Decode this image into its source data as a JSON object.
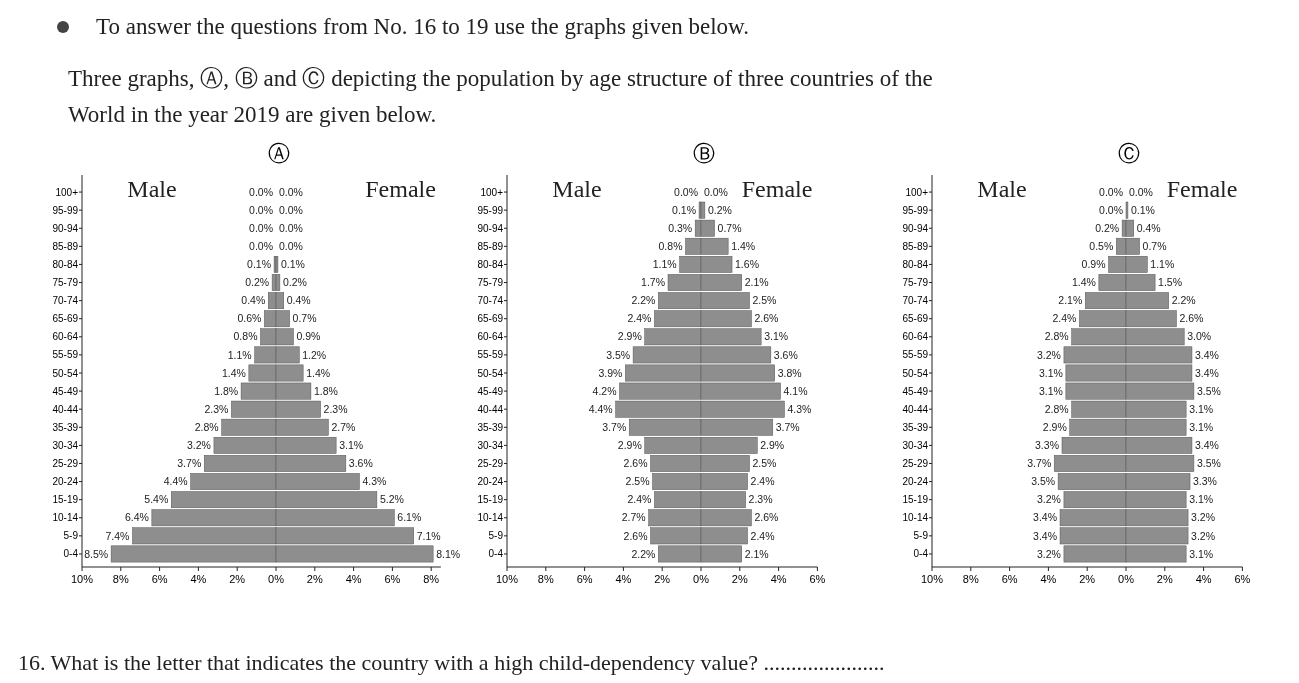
{
  "chart_data": [
    {
      "type": "bar",
      "orientation": "horizontal",
      "title": "Male",
      "tick_labels": "xy",
      "annotations": [
        "Ⓐ",
        "To answer the questions from No. 16 to 19 use the graphs given below.",
        "Three graphs, Ⓐ, Ⓑ and Ⓒ depicting the population by age structure of three countries of the World in the year 2019 are given below.",
        "16.  What is the letter that indicates the country with a high child-dependency value? ......................"
      ],
      "categories": [
        "100+",
        "95-99",
        "90-94",
        "85-89",
        "80-84",
        "75-79",
        "70-74",
        "65-69",
        "60-64",
        "55-59",
        "50-54",
        "45-49",
        "40-44",
        "35-39",
        "30-34",
        "25-29",
        "20-24",
        "15-19",
        "10-14",
        "5-9",
        "0-4"
      ],
      "xlim": [
        10,
        0
      ],
      "xticks": [
        {
          "value": 10,
          "label": "10%"
        },
        {
          "value": 8,
          "label": "8%"
        },
        {
          "value": 6,
          "label": "6%"
        },
        {
          "value": 4,
          "label": "4%"
        },
        {
          "value": 2,
          "label": "2%"
        }
      ],
      "series": [
        {
          "color": "#8e8e8e",
          "values": [
            0,
            0,
            0,
            0,
            0.1,
            0.2,
            0.4,
            0.6,
            0.8,
            1.1,
            1.4,
            1.8,
            2.3,
            2.8,
            3.2,
            3.7,
            4.4,
            5.4,
            6.4,
            7.4,
            8.5
          ],
          "value_labels": [
            "0.0%",
            "0.0%",
            "0.0%",
            "0.0%",
            "0.1%",
            "0.2%",
            "0.4%",
            "0.6%",
            "0.8%",
            "1.1%",
            "1.4%",
            "1.8%",
            "2.3%",
            "2.8%",
            "3.2%",
            "3.7%",
            "4.4%",
            "5.4%",
            "6.4%",
            "7.4%",
            "8.5%"
          ]
        }
      ]
    },
    {
      "type": "bar",
      "orientation": "horizontal",
      "title": "Female",
      "tick_labels": "x",
      "categories": [
        null,
        null,
        null,
        null,
        null,
        null,
        null,
        null,
        null,
        null,
        null,
        null,
        null,
        null,
        null,
        null,
        null,
        null,
        null,
        null,
        null
      ],
      "xlim": [
        0,
        8.5
      ],
      "xticks": [
        {
          "value": 0,
          "label": "0%"
        },
        {
          "value": 2,
          "label": "2%"
        },
        {
          "value": 4,
          "label": "4%"
        },
        {
          "value": 6,
          "label": "6%"
        },
        {
          "value": 8,
          "label": "8%"
        }
      ],
      "series": [
        {
          "color": "#8e8e8e",
          "values": [
            0,
            0,
            0,
            0,
            0.1,
            0.2,
            0.4,
            0.7,
            0.9,
            1.2,
            1.4,
            1.8,
            2.3,
            2.7,
            3.1,
            3.6,
            4.3,
            5.2,
            6.1,
            7.1,
            8.1
          ],
          "value_labels": [
            "0.0%",
            "0.0%",
            "0.0%",
            "0.0%",
            "0.1%",
            "0.2%",
            "0.4%",
            "0.7%",
            "0.9%",
            "1.2%",
            "1.4%",
            "1.8%",
            "2.3%",
            "2.7%",
            "3.1%",
            "3.6%",
            "4.3%",
            "5.2%",
            "6.1%",
            "7.1%",
            "8.1%"
          ]
        }
      ]
    },
    {
      "type": "bar",
      "orientation": "horizontal",
      "title": "Male",
      "tick_labels": "xy",
      "annotations": [
        "Ⓑ"
      ],
      "categories": [
        "100+",
        "95-99",
        "90-94",
        "85-89",
        "80-84",
        "75-79",
        "70-74",
        "65-69",
        "60-64",
        "55-59",
        "50-54",
        "45-49",
        "40-44",
        "35-39",
        "30-34",
        "25-29",
        "20-24",
        "15-19",
        "10-14",
        "5-9",
        "0-4"
      ],
      "xlim": [
        10,
        0
      ],
      "xticks": [
        {
          "value": 10,
          "label": "10%"
        },
        {
          "value": 8,
          "label": "8%"
        },
        {
          "value": 6,
          "label": "6%"
        },
        {
          "value": 4,
          "label": "4%"
        },
        {
          "value": 2,
          "label": "2%"
        }
      ],
      "series": [
        {
          "color": "#8e8e8e",
          "values": [
            0,
            0.1,
            0.3,
            0.8,
            1.1,
            1.7,
            2.2,
            2.4,
            2.9,
            3.5,
            3.9,
            4.2,
            4.4,
            3.7,
            2.9,
            2.6,
            2.5,
            2.4,
            2.7,
            2.6,
            2.2
          ],
          "value_labels": [
            "0.0%",
            "0.1%",
            "0.3%",
            "0.8%",
            "1.1%",
            "1.7%",
            "2.2%",
            "2.4%",
            "2.9%",
            "3.5%",
            "3.9%",
            "4.2%",
            "4.4%",
            "3.7%",
            "2.9%",
            "2.6%",
            "2.5%",
            "2.4%",
            "2.7%",
            "2.6%",
            "2.2%"
          ]
        }
      ]
    },
    {
      "type": "bar",
      "orientation": "horizontal",
      "title": "Female",
      "tick_labels": "x",
      "categories": [
        null,
        null,
        null,
        null,
        null,
        null,
        null,
        null,
        null,
        null,
        null,
        null,
        null,
        null,
        null,
        null,
        null,
        null,
        null,
        null,
        null
      ],
      "xlim": [
        0,
        6
      ],
      "xticks": [
        {
          "value": 0,
          "label": "0%"
        },
        {
          "value": 2,
          "label": "2%"
        },
        {
          "value": 4,
          "label": "4%"
        },
        {
          "value": 6,
          "label": "6%"
        }
      ],
      "series": [
        {
          "color": "#8e8e8e",
          "values": [
            0,
            0.2,
            0.7,
            1.4,
            1.6,
            2.1,
            2.5,
            2.6,
            3.1,
            3.6,
            3.8,
            4.1,
            4.3,
            3.7,
            2.9,
            2.5,
            2.4,
            2.3,
            2.6,
            2.4,
            2.1
          ],
          "value_labels": [
            "0.0%",
            "0.2%",
            "0.7%",
            "1.4%",
            "1.6%",
            "2.1%",
            "2.5%",
            "2.6%",
            "3.1%",
            "3.6%",
            "3.8%",
            "4.1%",
            "4.3%",
            "3.7%",
            "2.9%",
            "2.5%",
            "2.4%",
            "2.3%",
            "2.6%",
            "2.4%",
            "2.1%"
          ]
        }
      ]
    },
    {
      "type": "bar",
      "orientation": "horizontal",
      "title": "Male",
      "tick_labels": "xy",
      "annotations": [
        "Ⓒ"
      ],
      "categories": [
        "100+",
        "95-99",
        "90-94",
        "85-89",
        "80-84",
        "75-79",
        "70-74",
        "65-69",
        "60-64",
        "55-59",
        "50-54",
        "45-49",
        "40-44",
        "35-39",
        "30-34",
        "25-29",
        "20-24",
        "15-19",
        "10-14",
        "5-9",
        "0-4"
      ],
      "xlim": [
        10,
        0
      ],
      "xticks": [
        {
          "value": 10,
          "label": "10%"
        },
        {
          "value": 8,
          "label": "8%"
        },
        {
          "value": 6,
          "label": "6%"
        },
        {
          "value": 4,
          "label": "4%"
        },
        {
          "value": 2,
          "label": "2%"
        }
      ],
      "series": [
        {
          "color": "#8e8e8e",
          "values": [
            0,
            0,
            0.2,
            0.5,
            0.9,
            1.4,
            2.1,
            2.4,
            2.8,
            3.2,
            3.1,
            3.1,
            2.8,
            2.9,
            3.3,
            3.7,
            3.5,
            3.2,
            3.4,
            3.4,
            3.2
          ],
          "value_labels": [
            "0.0%",
            "0.0%",
            "0.2%",
            "0.5%",
            "0.9%",
            "1.4%",
            "2.1%",
            "2.4%",
            "2.8%",
            "3.2%",
            "3.1%",
            "3.1%",
            "2.8%",
            "2.9%",
            "3.3%",
            "3.7%",
            "3.5%",
            "3.2%",
            "3.4%",
            "3.4%",
            "3.2%"
          ]
        }
      ]
    },
    {
      "type": "bar",
      "orientation": "horizontal",
      "title": "Female",
      "tick_labels": "x",
      "categories": [
        null,
        null,
        null,
        null,
        null,
        null,
        null,
        null,
        null,
        null,
        null,
        null,
        null,
        null,
        null,
        null,
        null,
        null,
        null,
        null,
        null
      ],
      "xlim": [
        0,
        6
      ],
      "xticks": [
        {
          "value": 0,
          "label": "0%"
        },
        {
          "value": 2,
          "label": "2%"
        },
        {
          "value": 4,
          "label": "4%"
        },
        {
          "value": 6,
          "label": "6%"
        }
      ],
      "series": [
        {
          "color": "#8e8e8e",
          "values": [
            0,
            0.1,
            0.4,
            0.7,
            1.1,
            1.5,
            2.2,
            2.6,
            3.0,
            3.4,
            3.4,
            3.5,
            3.1,
            3.1,
            3.4,
            3.5,
            3.3,
            3.1,
            3.2,
            3.2,
            3.1
          ],
          "value_labels": [
            "0.0%",
            "0.1%",
            "0.4%",
            "0.7%",
            "1.1%",
            "1.5%",
            "2.2%",
            "2.6%",
            "3.0%",
            "3.4%",
            "3.4%",
            "3.5%",
            "3.1%",
            "3.1%",
            "3.4%",
            "3.5%",
            "3.3%",
            "3.1%",
            "3.2%",
            "3.2%",
            "3.1%"
          ]
        }
      ]
    }
  ]
}
